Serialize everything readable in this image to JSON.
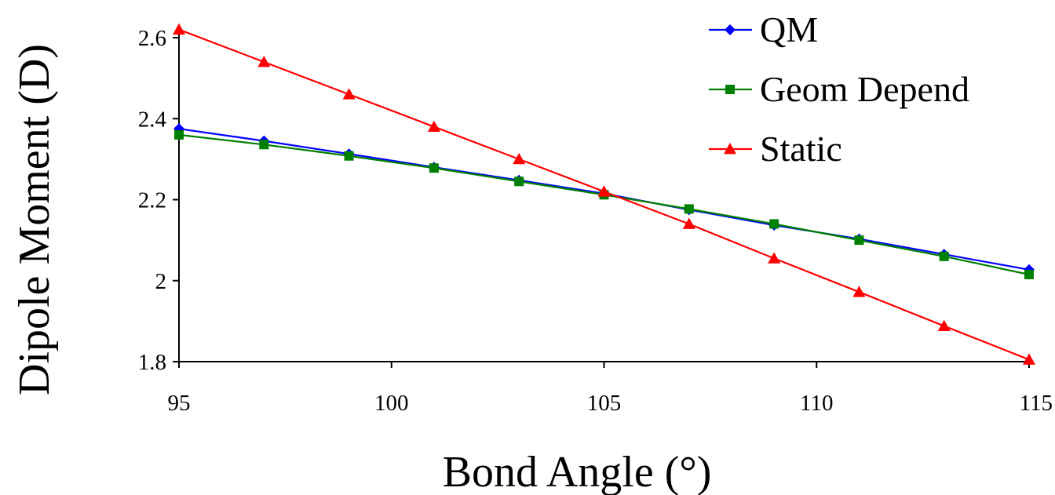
{
  "chart_data": {
    "type": "line",
    "title": "",
    "xlabel": "Bond Angle (°)",
    "ylabel": "Dipole Moment (D)",
    "xlim": [
      95,
      115
    ],
    "ylim": [
      1.8,
      2.6
    ],
    "xticks": [
      95,
      100,
      105,
      110,
      115
    ],
    "xtick_labels": [
      "95",
      "100",
      "105",
      "110",
      "115"
    ],
    "yticks": [
      1.8,
      2.0,
      2.2,
      2.4,
      2.6
    ],
    "ytick_labels": [
      "1.8",
      "2",
      "2.2",
      "2.4",
      "2.6"
    ],
    "grid": false,
    "legend_position": "top-right",
    "series": [
      {
        "name": "QM",
        "color": "#0000ff",
        "marker": "diamond",
        "x": [
          95,
          97,
          99,
          101,
          103,
          105,
          107,
          109,
          111,
          113,
          115
        ],
        "y": [
          2.375,
          2.345,
          2.313,
          2.28,
          2.248,
          2.215,
          2.175,
          2.137,
          2.103,
          2.065,
          2.027
        ]
      },
      {
        "name": "Geom Depend",
        "color": "#008000",
        "marker": "square",
        "x": [
          95,
          97,
          99,
          101,
          103,
          105,
          107,
          109,
          111,
          113,
          115
        ],
        "y": [
          2.36,
          2.336,
          2.308,
          2.278,
          2.245,
          2.212,
          2.177,
          2.14,
          2.1,
          2.06,
          2.015
        ]
      },
      {
        "name": "Static",
        "color": "#ff0000",
        "marker": "triangle",
        "x": [
          95,
          97,
          99,
          101,
          103,
          105,
          107,
          109,
          111,
          113,
          115
        ],
        "y": [
          2.62,
          2.54,
          2.46,
          2.38,
          2.3,
          2.22,
          2.14,
          2.055,
          1.972,
          1.888,
          1.805
        ]
      }
    ]
  }
}
